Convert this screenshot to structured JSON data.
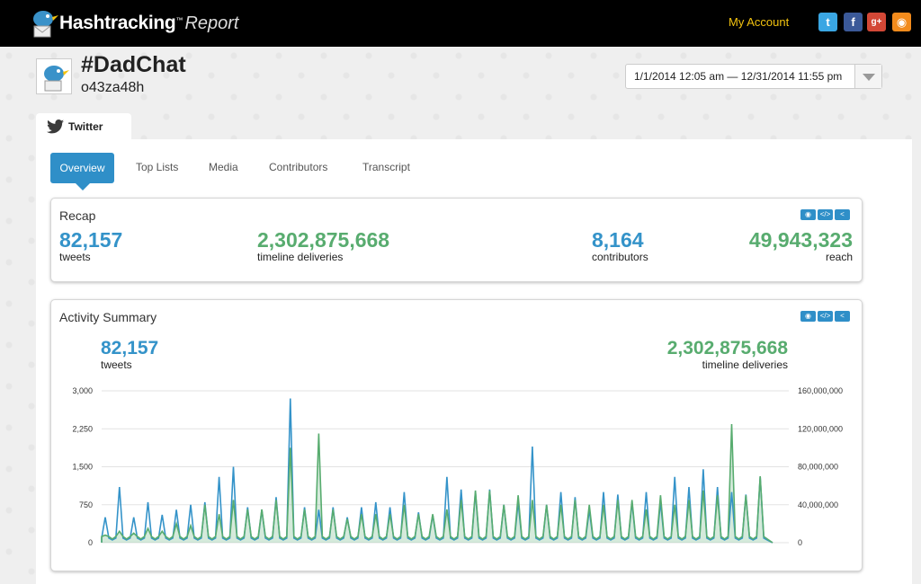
{
  "header": {
    "logo_text": "Hashtracking",
    "logo_tm": "™",
    "logo_report": "Report",
    "my_account": "My Account",
    "social": {
      "twitter": "t",
      "facebook": "f",
      "googleplus": "g+",
      "rss": "◉"
    }
  },
  "report": {
    "hashtag": "#DadChat",
    "handle": "o43za48h",
    "date_range": "1/1/2014 12:05 am — 12/31/2014 11:55 pm"
  },
  "platform_tab": "Twitter",
  "subtabs": [
    "Overview",
    "Top Lists",
    "Media",
    "Contributors",
    "Transcript"
  ],
  "recap": {
    "title": "Recap",
    "tweets": {
      "value": "82,157",
      "label": "tweets"
    },
    "deliveries": {
      "value": "2,302,875,668",
      "label": "timeline deliveries"
    },
    "contributors": {
      "value": "8,164",
      "label": "contributors"
    },
    "reach": {
      "value": "49,943,323",
      "label": "reach"
    }
  },
  "activity": {
    "title": "Activity Summary",
    "tweets": {
      "value": "82,157",
      "label": "tweets"
    },
    "deliveries": {
      "value": "2,302,875,668",
      "label": "timeline deliveries"
    }
  },
  "colors": {
    "blue": "#3493c9",
    "green": "#58ac6f",
    "accent": "#2f8fc8",
    "gold": "#f3c30f"
  },
  "chart_data": {
    "type": "line",
    "y_left": {
      "ticks": [
        "0",
        "750",
        "1,500",
        "2,250",
        "3,000"
      ],
      "range": [
        0,
        3000
      ]
    },
    "y_right": {
      "ticks": [
        "0",
        "40,000,000",
        "80,000,000",
        "120,000,000",
        "160,000,000"
      ],
      "range": [
        0,
        160000000
      ]
    },
    "grid": true,
    "series": [
      {
        "unit": "tweets",
        "peaks": [
          500,
          1100,
          500,
          800,
          550,
          650,
          750,
          800,
          1300,
          1500,
          700,
          650,
          900,
          2850,
          700,
          650,
          700,
          500,
          700,
          800,
          700,
          1000,
          600,
          550,
          1300,
          1050,
          1000,
          1050,
          750,
          800,
          1900,
          750,
          1000,
          900,
          650,
          1000,
          950,
          800,
          1000,
          800,
          1300,
          1100,
          1450,
          1100,
          1000,
          950,
          1300
        ]
      },
      {
        "unit": "timeline deliveries",
        "peaks": [
          8000000,
          12000000,
          10000000,
          15000000,
          12000000,
          20000000,
          18000000,
          40000000,
          30000000,
          45000000,
          35000000,
          35000000,
          45000000,
          100000000,
          35000000,
          115000000,
          35000000,
          25000000,
          30000000,
          30000000,
          30000000,
          40000000,
          30000000,
          30000000,
          35000000,
          45000000,
          55000000,
          55000000,
          40000000,
          50000000,
          45000000,
          40000000,
          40000000,
          45000000,
          40000000,
          40000000,
          45000000,
          45000000,
          35000000,
          50000000,
          40000000,
          45000000,
          55000000,
          50000000,
          125000000,
          50000000,
          70000000
        ]
      }
    ]
  }
}
